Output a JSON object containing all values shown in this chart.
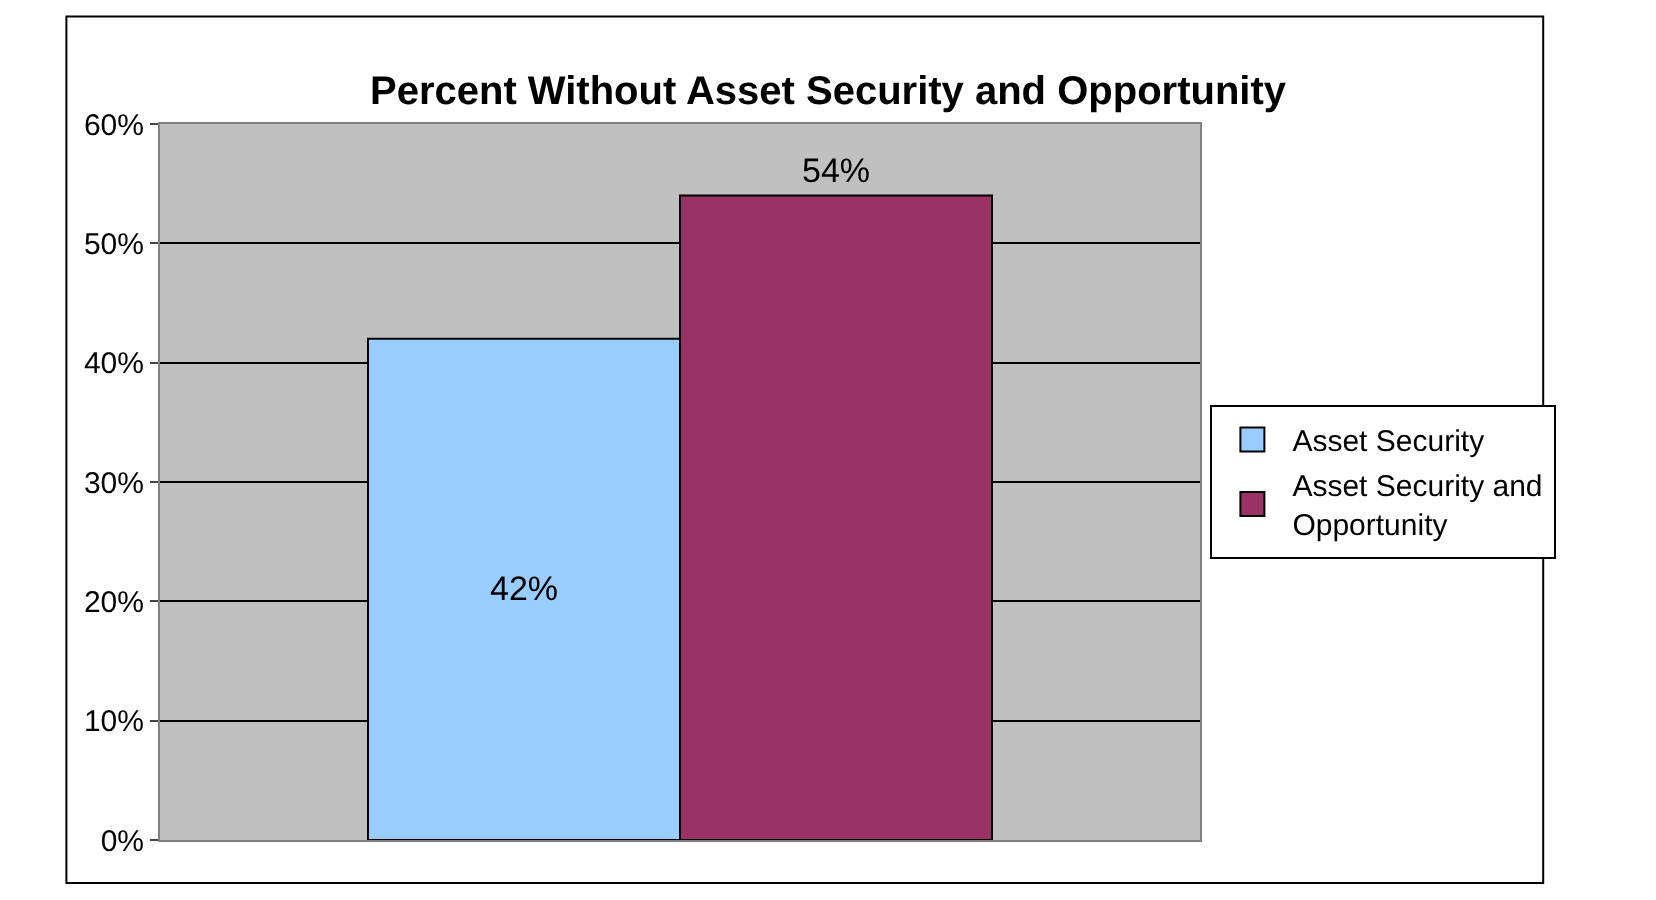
{
  "chart_data": {
    "type": "bar",
    "title": "Percent Without Asset Security and Opportunity",
    "categories": [
      null
    ],
    "series": [
      {
        "name": "Asset Security",
        "color": "#99ccff",
        "values": [
          42
        ],
        "value_labels": [
          "42%"
        ]
      },
      {
        "name": "Asset Security and Opportunity",
        "color": "#993366",
        "values": [
          54
        ],
        "value_labels": [
          "54%"
        ]
      }
    ],
    "ylim": [
      0,
      60
    ],
    "yticks": [
      {
        "value": 0,
        "label": "0%"
      },
      {
        "value": 10,
        "label": "10%"
      },
      {
        "value": 20,
        "label": "20%"
      },
      {
        "value": 30,
        "label": "30%"
      },
      {
        "value": 40,
        "label": "40%"
      },
      {
        "value": 50,
        "label": "50%"
      },
      {
        "value": 60,
        "label": "60%"
      }
    ],
    "grid": "y",
    "legend": "right"
  }
}
